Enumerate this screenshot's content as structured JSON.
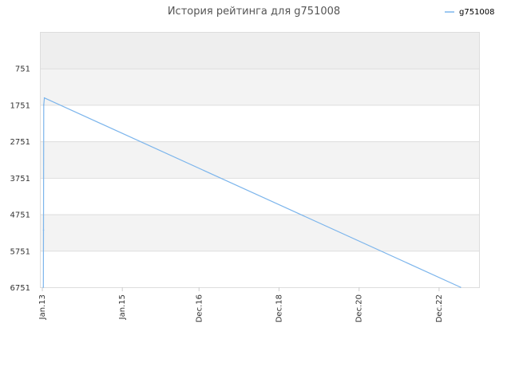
{
  "chart_data": {
    "type": "line",
    "title": "История рейтинга для g751008",
    "xlabel": "",
    "ylabel": "",
    "y_inverted": true,
    "ylim": [
      6751,
      -249
    ],
    "y_ticks": [
      751,
      1751,
      2751,
      3751,
      4751,
      5751,
      6751
    ],
    "y_tick_labels": [
      "751",
      "1751",
      "2751",
      "3751",
      "4751",
      "5751",
      "6751"
    ],
    "x_ticks": [
      {
        "label": "Jan.13",
        "date": "2013-01-01"
      },
      {
        "label": "Jan.15",
        "date": "2015-01-01"
      },
      {
        "label": "Dec.16",
        "date": "2016-12-01"
      },
      {
        "label": "Dec.18",
        "date": "2018-12-01"
      },
      {
        "label": "Dec.20",
        "date": "2020-12-01"
      },
      {
        "label": "Dec.22",
        "date": "2022-12-01"
      }
    ],
    "xlim": [
      "2012-12-10",
      "2023-12-01"
    ],
    "legend_position": "top-right",
    "grid": true,
    "colors": {
      "series": "#7cb5ec",
      "band_dark": "#eeeeee",
      "band_light": "#f3f3f3",
      "grid": "#dddddd",
      "axis": "#cccccc"
    },
    "series": [
      {
        "name": "g751008",
        "points": [
          {
            "date": "2013-01-10",
            "rating": 6751
          },
          {
            "date": "2013-01-12",
            "rating": 5180
          },
          {
            "date": "2013-01-14",
            "rating": 1751
          },
          {
            "date": "2013-01-20",
            "rating": 1560
          },
          {
            "date": "2023-06-15",
            "rating": 6751
          }
        ]
      }
    ]
  }
}
